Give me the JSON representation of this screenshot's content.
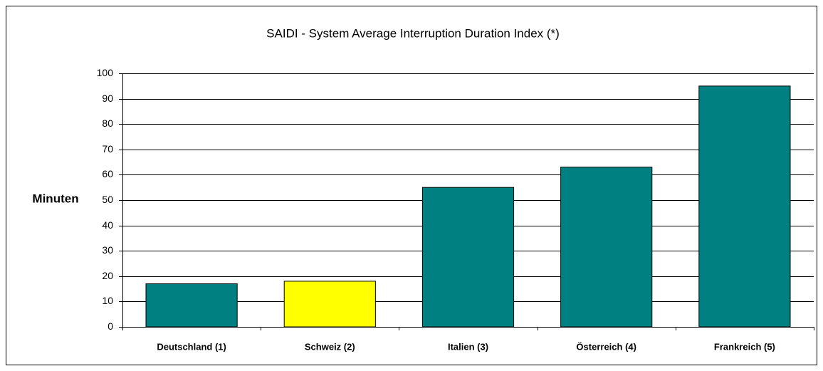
{
  "chart_data": {
    "type": "bar",
    "title": "SAIDI - System Average Interruption Duration Index (*)",
    "y_label": "Minuten",
    "categories": [
      "Deutschland (1)",
      "Schweiz (2)",
      "Italien (3)",
      "Österreich (4)",
      "Frankreich (5)"
    ],
    "values": [
      17,
      18,
      55,
      63,
      95
    ],
    "colors": [
      "#008080",
      "#ffff00",
      "#008080",
      "#008080",
      "#008080"
    ],
    "ylim": [
      0,
      100
    ],
    "yticks": [
      0,
      10,
      20,
      30,
      40,
      50,
      60,
      70,
      80,
      90,
      100
    ],
    "grid": true
  }
}
